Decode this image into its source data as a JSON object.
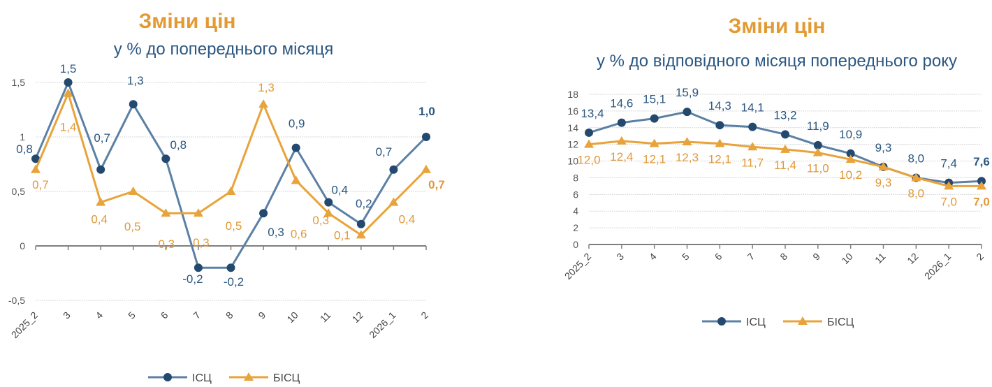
{
  "colors": {
    "isc_line": "#5b80a5",
    "isc_marker": "#24496f",
    "isc_label": "#2b5780",
    "bisc": "#e8a33a",
    "bisc_label": "#e0993a",
    "title": "#e39a32",
    "grid": "#d9d9d9",
    "axis": "#7f7f7f"
  },
  "chart_data": [
    {
      "type": "line",
      "title": "Зміни цін",
      "subtitle": "у % до попереднього місяця",
      "categories": [
        "2025_2",
        "3",
        "4",
        "5",
        "6",
        "7",
        "8",
        "9",
        "10",
        "11",
        "12",
        "2026_1",
        "2"
      ],
      "ylim": [
        -0.5,
        1.5
      ],
      "yticks": [
        -0.5,
        0,
        0.5,
        1,
        1.5
      ],
      "ytick_labels": [
        "-0,5",
        "0",
        "0,5",
        "1",
        "1,5"
      ],
      "grid": true,
      "legend": "bottom",
      "series": [
        {
          "name": "ІСЦ",
          "marker": "circle",
          "values": [
            0.8,
            1.5,
            0.7,
            1.3,
            0.8,
            -0.2,
            -0.2,
            0.3,
            0.9,
            0.4,
            0.2,
            0.7,
            1.0
          ],
          "labels": [
            "0,8",
            "1,5",
            "0,7",
            "1,3",
            "0,8",
            "-0,2",
            "-0,2",
            "0,3",
            "0,9",
            "0,4",
            "0,2",
            "0,7",
            "1,0"
          ]
        },
        {
          "name": "БІСЦ",
          "marker": "triangle",
          "values": [
            0.7,
            1.4,
            0.4,
            0.5,
            0.3,
            0.3,
            0.5,
            1.3,
            0.6,
            0.3,
            0.1,
            0.4,
            0.7
          ],
          "labels": [
            "0,7",
            "1,4",
            "0,4",
            "0,5",
            "0,3",
            "0,3",
            "0,5",
            "1,3",
            "0,6",
            "0,3",
            "0,1",
            "0,4",
            "0,7"
          ]
        }
      ]
    },
    {
      "type": "line",
      "title": "Зміни цін",
      "subtitle": "у % до відповідного місяця попереднього року",
      "categories": [
        "2025_2",
        "3",
        "4",
        "5",
        "6",
        "7",
        "8",
        "9",
        "10",
        "11",
        "12",
        "2026_1",
        "2"
      ],
      "ylim": [
        0,
        18
      ],
      "yticks": [
        0,
        2,
        4,
        6,
        8,
        10,
        12,
        14,
        16,
        18
      ],
      "ytick_labels": [
        "0",
        "2",
        "4",
        "6",
        "8",
        "10",
        "12",
        "14",
        "16",
        "18"
      ],
      "grid": true,
      "legend": "bottom",
      "series": [
        {
          "name": "ІСЦ",
          "marker": "circle",
          "values": [
            13.4,
            14.6,
            15.1,
            15.9,
            14.3,
            14.1,
            13.2,
            11.9,
            10.9,
            9.3,
            8.0,
            7.4,
            7.6
          ],
          "labels": [
            "13,4",
            "14,6",
            "15,1",
            "15,9",
            "14,3",
            "14,1",
            "13,2",
            "11,9",
            "10,9",
            "9,3",
            "8,0",
            "7,4",
            "7,6"
          ]
        },
        {
          "name": "БІСЦ",
          "marker": "triangle",
          "values": [
            12.0,
            12.4,
            12.1,
            12.3,
            12.1,
            11.7,
            11.4,
            11.0,
            10.2,
            9.3,
            8.0,
            7.0,
            7.0
          ],
          "labels": [
            "12,0",
            "12,4",
            "12,1",
            "12,3",
            "12,1",
            "11,7",
            "11,4",
            "11,0",
            "10,2",
            "9,3",
            "8,0",
            "7,0",
            "7,0"
          ]
        }
      ]
    }
  ]
}
